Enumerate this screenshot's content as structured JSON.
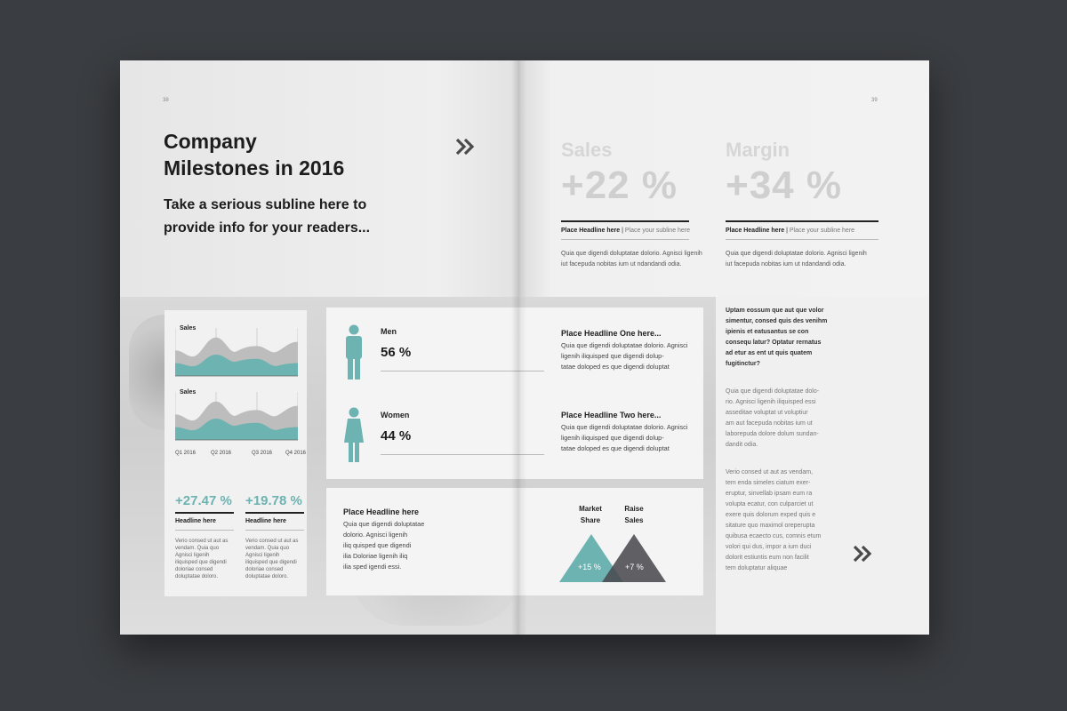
{
  "left_page": {
    "page_number": "38",
    "title_line1": "Company",
    "title_line2": "Milestones in 2016",
    "subline_line1": "Take a serious subline here to",
    "subline_line2": "provide info for your readers...",
    "chevron": "»"
  },
  "chart_card": {
    "chart1_label": "Sales",
    "chart2_label": "Sales",
    "quarters": [
      "Q1 2016",
      "Q2 2016",
      "Q3 2016",
      "Q4 2016"
    ],
    "stat1_value": "+27.47 %",
    "stat1_head": "Headline here",
    "stat2_value": "+19.78 %",
    "stat2_head": "Headline here",
    "stat1_text": [
      "Verio consed ut aut as",
      "vendam. Quia quo",
      "Agnisci ligenih",
      "iliquisped que digendi",
      "doloriae consed",
      "doluptatae doloro."
    ],
    "stat2_text": [
      "Verio consed ut aut as",
      "vendam. Quia quo",
      "Agnisci ligenih",
      "iliquisped que digendi",
      "doloriae consed",
      "doluptatae doloro."
    ],
    "teal": "#6db3b1",
    "grey": "#bdbdbd"
  },
  "chart_data": [
    {
      "type": "area",
      "title": "Sales",
      "x": [
        "Q1 2016",
        "Q2 2016",
        "Q3 2016",
        "Q4 2016"
      ],
      "series": [
        {
          "values": [
            6,
            9,
            7,
            8
          ]
        },
        {
          "values": [
            3,
            5,
            4,
            3
          ]
        }
      ]
    },
    {
      "type": "area",
      "title": "Sales",
      "x": [
        "Q1 2016",
        "Q2 2016",
        "Q3 2016",
        "Q4 2016"
      ],
      "series": [
        {
          "values": [
            6,
            9,
            7,
            8
          ]
        },
        {
          "values": [
            3,
            5,
            4,
            3
          ]
        }
      ]
    }
  ],
  "mw_card": {
    "men_label": "Men",
    "men_pct": "56 %",
    "women_label": "Women",
    "women_pct": "44 %",
    "headline_one": "Place Headline One here...",
    "headline_one_text": [
      "Quia que digendi doluptatae dolorio. Agnisci",
      "ligenih iliquisped que digendi dolup-",
      "tatae doloped es que digendi doluptat"
    ],
    "headline_two": "Place Headline Two here...",
    "headline_two_text": [
      "Quia que digendi doluptatae dolorio. Agnisci",
      "ligenih iliquisped que digendi dolup-",
      "tatae doloped es que digendi doluptat"
    ]
  },
  "bottom_card": {
    "headline": "Place Headline here",
    "text": [
      "Quia que digendi doluptatae",
      "dolorio. Agnisci ligenih",
      "iliq quisped que digendi",
      "ilia Doloriae ligenih iliq",
      "ilia sped igendi essi."
    ],
    "market_share_label": [
      "Market",
      "Share"
    ],
    "raise_sales_label": [
      "Raise",
      "Sales"
    ],
    "market_share_value": "+15 %",
    "raise_sales_value": "+7 %",
    "dark": "#4a4a50"
  },
  "right_page": {
    "page_number": "39",
    "sales_label": "Sales",
    "sales_value": "+22 %",
    "margin_label": "Margin",
    "margin_value": "+34 %",
    "headline_label": "Place Headline here",
    "subline_label": "Place your subline here",
    "col_text": [
      "Quia que digendi doluptatae dolorio. Agnisci ligenih",
      "iut facepuda nobitas ium ut ndandandi odia."
    ],
    "sidebar_bold": [
      "Uptam eossum que aut que volor",
      "simentur, consed quis des venihm",
      "ipienis et eatusantus se con",
      "consequ latur? Optatur rernatus",
      "ad etur as ent ut quis quatem",
      "fugitinctur?"
    ],
    "sidebar_p1": [
      "Quia que digendi doluptatae dolo-",
      "rio. Agnisci ligenih iliquisped essi",
      "asseditae voluptat ut voluptiur",
      "am aut facepuda nobitas ium ut",
      "laborepuda dolore dolum sundan-",
      "dandit odia."
    ],
    "sidebar_p2": [
      "Verio consed ut aut as vendam,",
      "tem enda simeles ciatum exer-",
      "eruptur, sinvellab ipsam eum ra",
      "volupta ecatur, con culparciet ut",
      "exere quis dolorum exped quis e",
      "sitature quo maximol oreperupta",
      "quibusa ecaecto cus, comnis etum",
      "volori qui dus, impor a ium duci",
      "dolorit estiuntis eum non facilit",
      "tem doluptatur aliquae"
    ],
    "chevron": "»"
  }
}
